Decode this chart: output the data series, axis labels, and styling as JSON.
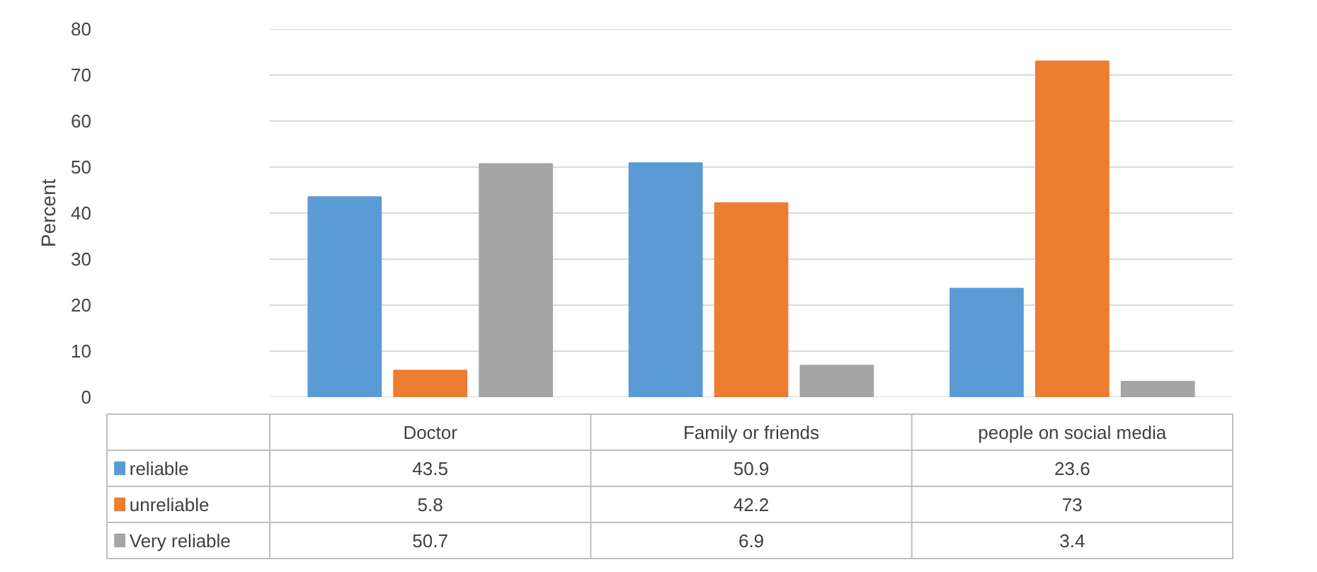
{
  "chart_data": {
    "type": "bar",
    "ylabel": "Percent",
    "categories": [
      "Doctor",
      "Family or friends",
      "people on social media"
    ],
    "series": [
      {
        "name": "reliable",
        "color": "#5b9bd5",
        "values": [
          43.5,
          50.9,
          23.6
        ]
      },
      {
        "name": "unreliable",
        "color": "#ed7d31",
        "values": [
          5.8,
          42.2,
          73
        ]
      },
      {
        "name": "Very reliable",
        "color": "#a5a5a5",
        "values": [
          50.7,
          6.9,
          3.4
        ]
      }
    ],
    "ylim": [
      0,
      80
    ],
    "yticks": [
      0,
      10,
      20,
      30,
      40,
      50,
      60,
      70,
      80
    ],
    "grid": "y",
    "legend": "bottom",
    "data_labels": true
  }
}
